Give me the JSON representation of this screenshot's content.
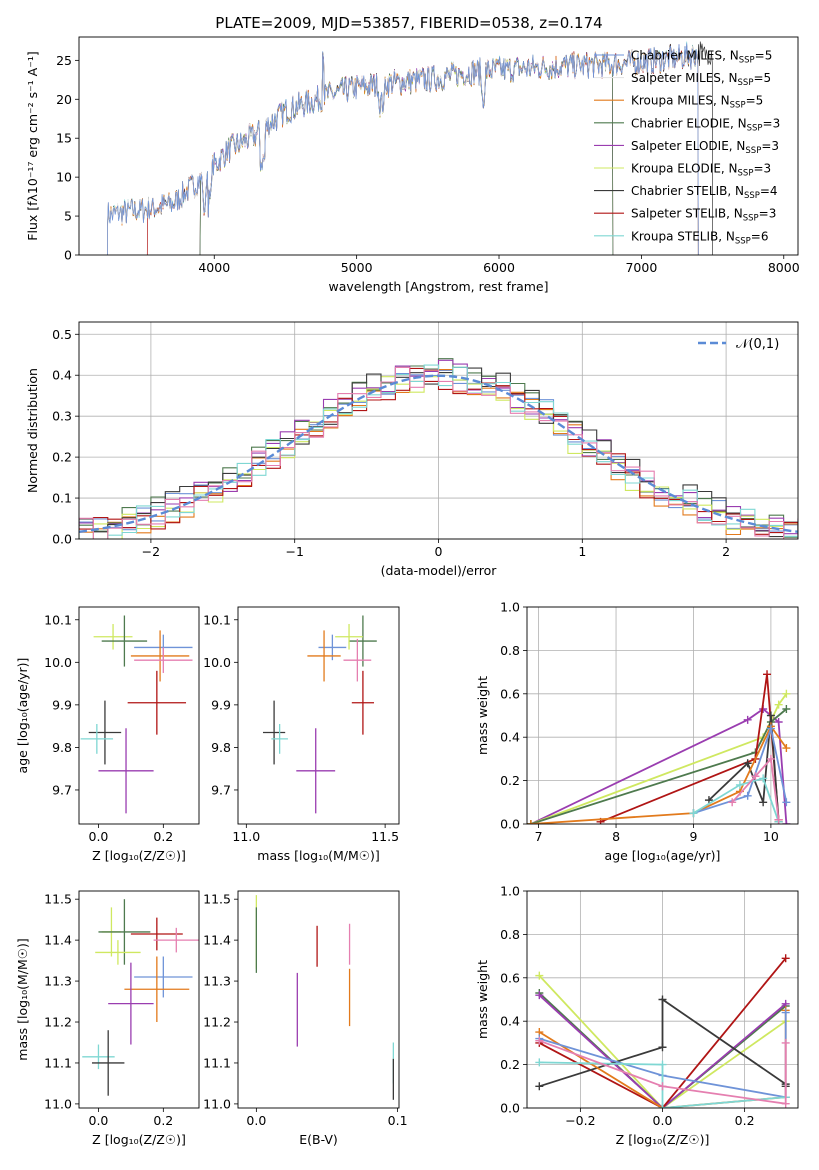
{
  "colors": {
    "chabrier_miles": "#6f93d8",
    "salpeter_miles": "#e6e6e6",
    "kroupa_miles": "#e27a1c",
    "chabrier_elodie": "#4e7a4e",
    "salpeter_elodie": "#9a3db0",
    "kroupa_elodie": "#cfe860",
    "chabrier_stelib": "#3a3a3a",
    "salpeter_stelib": "#b01515",
    "kroupa_stelib": "#7fd7d3",
    "pink": "#e57fb0",
    "gauss": "#5b8bd6"
  },
  "chart_data": [
    {
      "id": "spectrum",
      "type": "line",
      "title": "PLATE=2009, MJD=53857, FIBERID=0538, z=0.174",
      "xlabel": "wavelength [Angstrom, rest frame]",
      "ylabel": "Flux [fλ10⁻¹⁷ erg cm⁻² s⁻¹ A⁻¹]",
      "xlim": [
        3050,
        8100
      ],
      "ylim": [
        0,
        28
      ],
      "xticks": [
        4000,
        5000,
        6000,
        7000,
        8000
      ],
      "yticks": [
        0,
        5,
        10,
        15,
        20,
        25
      ],
      "legend_position": "upper right",
      "continuum": {
        "x": [
          3250,
          3500,
          3700,
          3950,
          4100,
          4300,
          4500,
          4800,
          5000,
          5200,
          5500,
          5800,
          6000,
          6200,
          6500,
          6800,
          7000,
          7200,
          7400,
          7500
        ],
        "y": [
          5.2,
          5.8,
          6.5,
          10.5,
          13.5,
          15.5,
          18.5,
          20.5,
          21.5,
          22.0,
          22.5,
          23.5,
          23.8,
          24.0,
          24.3,
          24.5,
          24.8,
          25.2,
          25.8,
          26.0
        ]
      },
      "series": [
        {
          "name": "Chabrier MILES, N_SSP=5",
          "color": "#6f93d8",
          "xmin": 3250,
          "xmax": 7400
        },
        {
          "name": "Salpeter MILES, N_SSP=5",
          "color": "#e6e6e6",
          "xmin": 3250,
          "xmax": 7400
        },
        {
          "name": "Kroupa MILES, N_SSP=5",
          "color": "#e27a1c",
          "xmin": 3250,
          "xmax": 7400
        },
        {
          "name": "Chabrier ELODIE, N_SSP=3",
          "color": "#4e7a4e",
          "xmin": 3900,
          "xmax": 6800
        },
        {
          "name": "Salpeter ELODIE, N_SSP=3",
          "color": "#9a3db0",
          "xmin": 3900,
          "xmax": 6800
        },
        {
          "name": "Kroupa ELODIE, N_SSP=3",
          "color": "#cfe860",
          "xmin": 3900,
          "xmax": 6800
        },
        {
          "name": "Chabrier STELIB, N_SSP=4",
          "color": "#3a3a3a",
          "xmin": 3250,
          "xmax": 7500
        },
        {
          "name": "Salpeter STELIB, N_SSP=3",
          "color": "#b01515",
          "xmin": 3530,
          "xmax": 7400
        },
        {
          "name": "Kroupa STELIB, N_SSP=6",
          "color": "#7fd7d3",
          "xmin": 3250,
          "xmax": 7400
        }
      ]
    },
    {
      "id": "residuals",
      "type": "step",
      "xlabel": "(data-model)/error",
      "ylabel": "Normed distribution",
      "xlim": [
        -2.5,
        2.5
      ],
      "ylim": [
        0,
        0.53
      ],
      "xticks": [
        -2,
        -1,
        0,
        1,
        2
      ],
      "yticks": [
        0.0,
        0.1,
        0.2,
        0.3,
        0.4,
        0.5
      ],
      "grid": true,
      "legend_position": "upper right",
      "gauss_label": "𝒩(0,1)",
      "bin_width": 0.1,
      "series": [
        {
          "color": "#6f93d8",
          "offset": 0.01
        },
        {
          "color": "#e27a1c",
          "offset": -0.01
        },
        {
          "color": "#4e7a4e",
          "offset": 0.02
        },
        {
          "color": "#9a3db0",
          "offset": 0.015
        },
        {
          "color": "#cfe860",
          "offset": -0.02
        },
        {
          "color": "#3a3a3a",
          "offset": 0.025
        },
        {
          "color": "#b01515",
          "offset": -0.015
        },
        {
          "color": "#7fd7d3",
          "offset": 0.005
        },
        {
          "color": "#e57fb0",
          "offset": -0.005
        }
      ]
    },
    {
      "id": "age_vs_Z",
      "type": "errorbar",
      "xlabel": "Z [log₁₀(Z/Z☉)]",
      "ylabel": "age  [log₁₀(age/yr)]",
      "xlim": [
        -0.06,
        0.31
      ],
      "ylim": [
        9.62,
        10.13
      ],
      "xticks": [
        0.0,
        0.2
      ],
      "yticks": [
        9.7,
        9.8,
        9.9,
        10.0,
        10.1
      ],
      "points": [
        {
          "x": 0.045,
          "xerr": 0.06,
          "y": 10.06,
          "yerr": 0.03,
          "color": "#cfe860"
        },
        {
          "x": 0.08,
          "xerr": 0.07,
          "y": 10.05,
          "yerr": 0.06,
          "color": "#4e7a4e"
        },
        {
          "x": 0.2,
          "xerr": 0.09,
          "y": 10.035,
          "yerr": 0.03,
          "color": "#6f93d8"
        },
        {
          "x": 0.19,
          "xerr": 0.09,
          "y": 10.015,
          "yerr": 0.06,
          "color": "#e27a1c"
        },
        {
          "x": 0.2,
          "xerr": 0.09,
          "y": 10.005,
          "yerr": 0.03,
          "color": "#e57fb0"
        },
        {
          "x": 0.18,
          "xerr": 0.09,
          "y": 9.905,
          "yerr": 0.075,
          "color": "#b01515"
        },
        {
          "x": 0.02,
          "xerr": 0.05,
          "y": 9.835,
          "yerr": 0.075,
          "color": "#3a3a3a"
        },
        {
          "x": -0.005,
          "xerr": 0.05,
          "y": 9.82,
          "yerr": 0.035,
          "color": "#7fd7d3"
        },
        {
          "x": 0.085,
          "xerr": 0.085,
          "y": 9.745,
          "yerr": 0.1,
          "color": "#9a3db0"
        }
      ]
    },
    {
      "id": "age_vs_mass",
      "type": "errorbar",
      "xlabel": "mass [log₁₀(M/M☉)]",
      "ylabel": "",
      "xlim": [
        10.97,
        11.55
      ],
      "ylim": [
        9.62,
        10.13
      ],
      "xticks": [
        11.0,
        11.5
      ],
      "yticks": [
        9.7,
        9.8,
        9.9,
        10.0,
        10.1
      ],
      "points": [
        {
          "x": 11.42,
          "xerr": 0.05,
          "y": 10.05,
          "yerr": 0.06,
          "color": "#4e7a4e"
        },
        {
          "x": 11.37,
          "xerr": 0.05,
          "y": 10.06,
          "yerr": 0.03,
          "color": "#cfe860"
        },
        {
          "x": 11.31,
          "xerr": 0.05,
          "y": 10.035,
          "yerr": 0.03,
          "color": "#6f93d8"
        },
        {
          "x": 11.28,
          "xerr": 0.06,
          "y": 10.015,
          "yerr": 0.06,
          "color": "#e27a1c"
        },
        {
          "x": 11.4,
          "xerr": 0.05,
          "y": 10.005,
          "yerr": 0.05,
          "color": "#e57fb0"
        },
        {
          "x": 11.42,
          "xerr": 0.04,
          "y": 9.905,
          "yerr": 0.075,
          "color": "#b01515"
        },
        {
          "x": 11.1,
          "xerr": 0.04,
          "y": 9.835,
          "yerr": 0.075,
          "color": "#3a3a3a"
        },
        {
          "x": 11.12,
          "xerr": 0.03,
          "y": 9.82,
          "yerr": 0.035,
          "color": "#7fd7d3"
        },
        {
          "x": 11.25,
          "xerr": 0.07,
          "y": 9.745,
          "yerr": 0.1,
          "color": "#9a3db0"
        }
      ]
    },
    {
      "id": "weights_vs_age",
      "type": "line",
      "xlabel": "age  [log₁₀(age/yr)]",
      "ylabel": "mass weight",
      "xlim": [
        6.85,
        10.35
      ],
      "ylim": [
        0,
        1.0
      ],
      "xticks": [
        7,
        8,
        9,
        10
      ],
      "yticks": [
        0.0,
        0.2,
        0.4,
        0.6,
        0.8,
        1.0
      ],
      "grid": true,
      "series": [
        {
          "color": "#9a3db0",
          "x": [
            6.9,
            9.7,
            9.9,
            10.1,
            10.2
          ],
          "y": [
            0.0,
            0.48,
            0.53,
            0.47,
            0.0
          ]
        },
        {
          "color": "#cfe860",
          "x": [
            6.9,
            9.9,
            10.1,
            10.2
          ],
          "y": [
            0.0,
            0.4,
            0.55,
            0.6
          ]
        },
        {
          "color": "#4e7a4e",
          "x": [
            6.9,
            9.8,
            10.0,
            10.2
          ],
          "y": [
            0.0,
            0.33,
            0.47,
            0.53
          ]
        },
        {
          "color": "#b01515",
          "x": [
            7.8,
            9.8,
            9.95,
            10.1
          ],
          "y": [
            0.01,
            0.3,
            0.69,
            0.02
          ]
        },
        {
          "color": "#3a3a3a",
          "x": [
            9.2,
            9.7,
            9.9,
            10.0,
            10.1
          ],
          "y": [
            0.11,
            0.28,
            0.1,
            0.5,
            0.01
          ]
        },
        {
          "color": "#e27a1c",
          "x": [
            6.9,
            9.0,
            9.6,
            10.0,
            10.2
          ],
          "y": [
            0.0,
            0.05,
            0.15,
            0.45,
            0.35
          ]
        },
        {
          "color": "#6f93d8",
          "x": [
            9.0,
            9.7,
            10.0,
            10.2
          ],
          "y": [
            0.05,
            0.13,
            0.44,
            0.1
          ]
        },
        {
          "color": "#7fd7d3",
          "x": [
            9.0,
            9.6,
            9.9,
            10.1
          ],
          "y": [
            0.05,
            0.18,
            0.21,
            0.01
          ]
        },
        {
          "color": "#e57fb0",
          "x": [
            9.5,
            9.8,
            10.0,
            10.1
          ],
          "y": [
            0.1,
            0.22,
            0.3,
            0.02
          ]
        }
      ]
    },
    {
      "id": "mass_vs_Z",
      "type": "errorbar",
      "xlabel": "Z [log₁₀(Z/Z☉)]",
      "ylabel": "mass [log₁₀(M/M☉)]",
      "xlim": [
        -0.06,
        0.31
      ],
      "ylim": [
        10.99,
        11.52
      ],
      "xticks": [
        0.0,
        0.2
      ],
      "yticks": [
        11.0,
        11.1,
        11.2,
        11.3,
        11.4,
        11.5
      ],
      "points": [
        {
          "x": 0.04,
          "xerr": 0.03,
          "y": 11.42,
          "yerr": 0.06,
          "color": "#cfe860"
        },
        {
          "x": 0.08,
          "xerr": 0.08,
          "y": 11.42,
          "yerr": 0.08,
          "color": "#4e7a4e"
        },
        {
          "x": 0.18,
          "xerr": 0.08,
          "y": 11.415,
          "yerr": 0.04,
          "color": "#b01515"
        },
        {
          "x": 0.24,
          "xerr": 0.07,
          "y": 11.4,
          "yerr": 0.03,
          "color": "#e57fb0"
        },
        {
          "x": 0.06,
          "xerr": 0.07,
          "y": 11.37,
          "yerr": 0.03,
          "color": "#cfe860"
        },
        {
          "x": 0.2,
          "xerr": 0.09,
          "y": 11.31,
          "yerr": 0.05,
          "color": "#6f93d8"
        },
        {
          "x": 0.18,
          "xerr": 0.1,
          "y": 11.28,
          "yerr": 0.08,
          "color": "#e27a1c"
        },
        {
          "x": 0.1,
          "xerr": 0.07,
          "y": 11.245,
          "yerr": 0.1,
          "color": "#9a3db0"
        },
        {
          "x": 0.0,
          "xerr": 0.05,
          "y": 11.115,
          "yerr": 0.03,
          "color": "#7fd7d3"
        },
        {
          "x": 0.03,
          "xerr": 0.05,
          "y": 11.1,
          "yerr": 0.08,
          "color": "#3a3a3a"
        }
      ]
    },
    {
      "id": "mass_vs_ebv",
      "type": "errorbar",
      "xlabel": "E(B-V)",
      "ylabel": "",
      "xlim": [
        -0.013,
        0.101
      ],
      "ylim": [
        10.99,
        11.52
      ],
      "xticks": [
        0.0,
        0.1
      ],
      "yticks": [
        11.0,
        11.1,
        11.2,
        11.3,
        11.4,
        11.5
      ],
      "points": [
        {
          "x": 0.0,
          "xerr": 0,
          "y": 11.42,
          "yerr": 0.09,
          "color": "#cfe860"
        },
        {
          "x": 0.0,
          "xerr": 0,
          "y": 11.4,
          "yerr": 0.08,
          "color": "#4e7a4e"
        },
        {
          "x": 0.043,
          "xerr": 0,
          "y": 11.385,
          "yerr": 0.05,
          "color": "#b01515"
        },
        {
          "x": 0.066,
          "xerr": 0,
          "y": 11.39,
          "yerr": 0.05,
          "color": "#e57fb0"
        },
        {
          "x": 0.066,
          "xerr": 0,
          "y": 11.26,
          "yerr": 0.07,
          "color": "#e27a1c"
        },
        {
          "x": 0.029,
          "xerr": 0,
          "y": 11.23,
          "yerr": 0.09,
          "color": "#9a3db0"
        },
        {
          "x": 0.097,
          "xerr": 0,
          "y": 11.1,
          "yerr": 0.05,
          "color": "#7fd7d3"
        },
        {
          "x": 0.097,
          "xerr": 0,
          "y": 11.06,
          "yerr": 0.05,
          "color": "#3a3a3a"
        }
      ]
    },
    {
      "id": "weights_vs_Z",
      "type": "line",
      "xlabel": "Z [log₁₀(Z/Z☉)]",
      "ylabel": "mass weight",
      "xlim": [
        -0.33,
        0.33
      ],
      "ylim": [
        0,
        1.0
      ],
      "xticks": [
        -0.2,
        0.0,
        0.2
      ],
      "yticks": [
        0.0,
        0.2,
        0.4,
        0.6,
        0.8,
        1.0
      ],
      "grid": true,
      "series": [
        {
          "color": "#cfe860",
          "x": [
            -0.3,
            0.0,
            0.3
          ],
          "y": [
            0.61,
            0.0,
            0.4
          ]
        },
        {
          "color": "#4e7a4e",
          "x": [
            -0.3,
            0.0,
            0.3
          ],
          "y": [
            0.53,
            0.0,
            0.47
          ]
        },
        {
          "color": "#9a3db0",
          "x": [
            -0.3,
            0.0,
            0.3
          ],
          "y": [
            0.52,
            0.0,
            0.48
          ]
        },
        {
          "color": "#b01515",
          "x": [
            -0.3,
            0.0,
            0.3
          ],
          "y": [
            0.3,
            0.0,
            0.69
          ]
        },
        {
          "color": "#3a3a3a",
          "x": [
            -0.3,
            0.0,
            0.0,
            0.3,
            0.3
          ],
          "y": [
            0.1,
            0.28,
            0.5,
            0.11,
            0.1
          ]
        },
        {
          "color": "#e27a1c",
          "x": [
            -0.3,
            0.0,
            0.3,
            0.3
          ],
          "y": [
            0.35,
            0.0,
            0.05,
            0.45
          ]
        },
        {
          "color": "#6f93d8",
          "x": [
            -0.3,
            0.0,
            0.3,
            0.3
          ],
          "y": [
            0.32,
            0.15,
            0.05,
            0.44
          ]
        },
        {
          "color": "#7fd7d3",
          "x": [
            -0.3,
            0.0,
            0.0,
            0.3
          ],
          "y": [
            0.21,
            0.2,
            0.0,
            0.05
          ]
        },
        {
          "color": "#e57fb0",
          "x": [
            -0.3,
            0.0,
            0.3,
            0.3
          ],
          "y": [
            0.31,
            0.1,
            0.02,
            0.3
          ]
        }
      ]
    }
  ]
}
